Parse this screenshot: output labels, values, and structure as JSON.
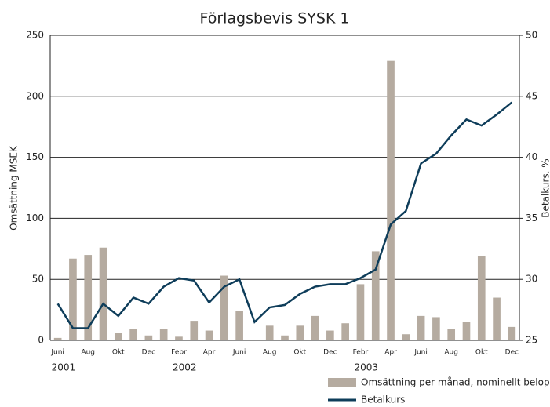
{
  "chart_data": {
    "type": "bar_line",
    "title": "Förlagsbevis SYSK 1",
    "ylabel": "Omsättning MSEK",
    "y2label": "Betalkurs. %",
    "categories": [
      "Juni",
      null,
      "Aug",
      null,
      "Okt",
      null,
      "Dec",
      null,
      "Febr",
      null,
      "Apr",
      null,
      "Juni",
      null,
      "Aug",
      null,
      "Okt",
      null,
      "Dec",
      null,
      "Febr",
      null,
      "Apr",
      null,
      "Juni",
      null,
      "Aug",
      null,
      "Okt",
      null,
      "Dec"
    ],
    "years": [
      "2001",
      "2002",
      "2003"
    ],
    "ylim": [
      0,
      250
    ],
    "yticks": [
      0,
      50,
      100,
      150,
      200,
      250
    ],
    "y2lim": [
      25,
      50
    ],
    "y2ticks": [
      25,
      30,
      35,
      40,
      45,
      50
    ],
    "grid": true,
    "legend": "bottom-right",
    "series": [
      {
        "name": "Omsättning per månad, nominellt belopp",
        "type": "bar",
        "color": "#b5aba0",
        "values": [
          2,
          67,
          70,
          76,
          6,
          9,
          4,
          9,
          3,
          16,
          8,
          53,
          24,
          0,
          12,
          4,
          12,
          20,
          8,
          14,
          46,
          73,
          229,
          5,
          20,
          19,
          9,
          15,
          69,
          35,
          11
        ]
      },
      {
        "name": "Betalkurs",
        "type": "line",
        "axis": "y2",
        "color": "#0e3d5a",
        "values": [
          28.0,
          26.0,
          26.0,
          28.0,
          27.0,
          28.5,
          28.0,
          29.4,
          30.1,
          29.9,
          28.1,
          29.4,
          30.0,
          26.5,
          27.7,
          27.9,
          28.8,
          29.4,
          29.6,
          29.6,
          30.1,
          30.8,
          34.5,
          35.6,
          39.5,
          40.3,
          41.8,
          43.1,
          42.6,
          43.5,
          44.5
        ]
      }
    ]
  }
}
